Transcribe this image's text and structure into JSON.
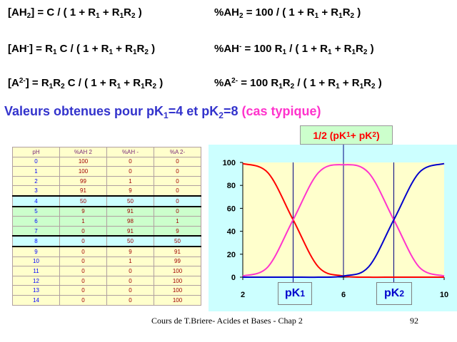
{
  "equations": {
    "ah2": {
      "a": "[AH",
      "a_sub": "2",
      "b": "] = C / ( 1  + R",
      "b_sub": "1",
      "c": " + R",
      "c_sub": "1",
      "d": "R",
      "d_sub": "2",
      "e": " )"
    },
    "pct_ah2": {
      "a": "%AH",
      "a_sub": "2",
      "b": " = 100 / ( 1  + R",
      "b_sub": "1",
      "c": " + R",
      "c_sub": "1",
      "d": "R",
      "d_sub": "2",
      "e": " )"
    },
    "ah": {
      "a": "[AH",
      "a_sup": "-",
      "b": "] = R",
      "b_sub": "1",
      "c": " C / ( 1  + R",
      "c_sub": "1",
      "d": " + R",
      "d_sub": "1",
      "e": "R",
      "e_sub": "2",
      "f": " )"
    },
    "pct_ah": {
      "a": "%AH",
      "a_sup": "-",
      "b": " = 100 R",
      "b_sub": "1",
      "c": " / ( 1  + R",
      "c_sub": "1",
      "d": " + R",
      "d_sub": "1",
      "e": "R",
      "e_sub": "2",
      "f": " )"
    },
    "a2": {
      "a": "[A",
      "a_sup": "2-",
      "b": "] = R",
      "b_sub": "1",
      "c": "R",
      "c_sub": "2",
      "d": " C / ( 1  + R",
      "d_sub": "1",
      "e": " + R",
      "e_sub": "1",
      "f": "R",
      "f_sub": "2",
      "g": " )"
    },
    "pct_a2": {
      "a": "%A",
      "a_sup": "2-",
      "b": " = 100 R",
      "b_sub": "1",
      "c": "R",
      "c_sub": "2",
      "d": "  / ( 1  + R",
      "d_sub": "1",
      "e": " + R",
      "e_sub": "1",
      "f": "R",
      "f_sub": "2",
      "g": " )"
    }
  },
  "headline": {
    "part1": "Valeurs obtenues pour pK",
    "sub1": "1",
    "part2": "=4 et pK",
    "sub2": "2",
    "part3": "=8 ",
    "pink": "(cas typique)"
  },
  "half_label": {
    "a": "1/2 (pK",
    "a_sub": "1",
    "b": "+ pK",
    "b_sub": "2",
    "c": ")"
  },
  "table": {
    "headers": [
      "pH",
      "%AH 2",
      "%AH -",
      "%A 2-"
    ],
    "rows": [
      [
        "0",
        "100",
        "0",
        "0"
      ],
      [
        "1",
        "100",
        "0",
        "0"
      ],
      [
        "2",
        "99",
        "1",
        "0"
      ],
      [
        "3",
        "91",
        "9",
        "0"
      ],
      [
        "4",
        "50",
        "50",
        "0"
      ],
      [
        "5",
        "9",
        "91",
        "0"
      ],
      [
        "6",
        "1",
        "98",
        "1"
      ],
      [
        "7",
        "0",
        "91",
        "9"
      ],
      [
        "8",
        "0",
        "50",
        "50"
      ],
      [
        "9",
        "0",
        "9",
        "91"
      ],
      [
        "10",
        "0",
        "1",
        "99"
      ],
      [
        "11",
        "0",
        "0",
        "100"
      ],
      [
        "12",
        "0",
        "0",
        "100"
      ],
      [
        "13",
        "0",
        "0",
        "100"
      ],
      [
        "14",
        "0",
        "0",
        "100"
      ]
    ],
    "row_colors": [
      "#ffffcc",
      "#ffffcc",
      "#ffffcc",
      "#ffffcc",
      "#ccffff",
      "#ccffcc",
      "#ccffcc",
      "#ccffcc",
      "#ccffff",
      "#ffffcc",
      "#ffffcc",
      "#ffffcc",
      "#ffffcc",
      "#ffffcc",
      "#ffffcc"
    ]
  },
  "chart_data": {
    "type": "line",
    "x": [
      2,
      3,
      4,
      5,
      6,
      7,
      8,
      9,
      10
    ],
    "series": [
      {
        "color": "#ff0000",
        "values": [
          99,
          91,
          50,
          9,
          1,
          0,
          0,
          0,
          0
        ]
      },
      {
        "color": "#ff33cc",
        "values": [
          1,
          9,
          50,
          91,
          98,
          91,
          50,
          9,
          1
        ]
      },
      {
        "color": "#0000cc",
        "values": [
          0,
          0,
          0,
          0,
          1,
          9,
          50,
          91,
          99
        ]
      }
    ],
    "xlim": [
      2,
      10
    ],
    "ylim": [
      0,
      100
    ],
    "xticks": [
      "2",
      "6",
      "10"
    ],
    "yticks": [
      "0",
      "20",
      "40",
      "60",
      "80",
      "100"
    ],
    "plot_bg": "#ffffcc",
    "vline_color": "#00007f"
  },
  "pk_labels": {
    "pk1": "pK",
    "pk1_sub": "1",
    "pk2": "pK",
    "pk2_sub": "2"
  },
  "footer": {
    "course": "Cours de T.Briere- Acides et Bases - Chap 2",
    "page": "92"
  }
}
